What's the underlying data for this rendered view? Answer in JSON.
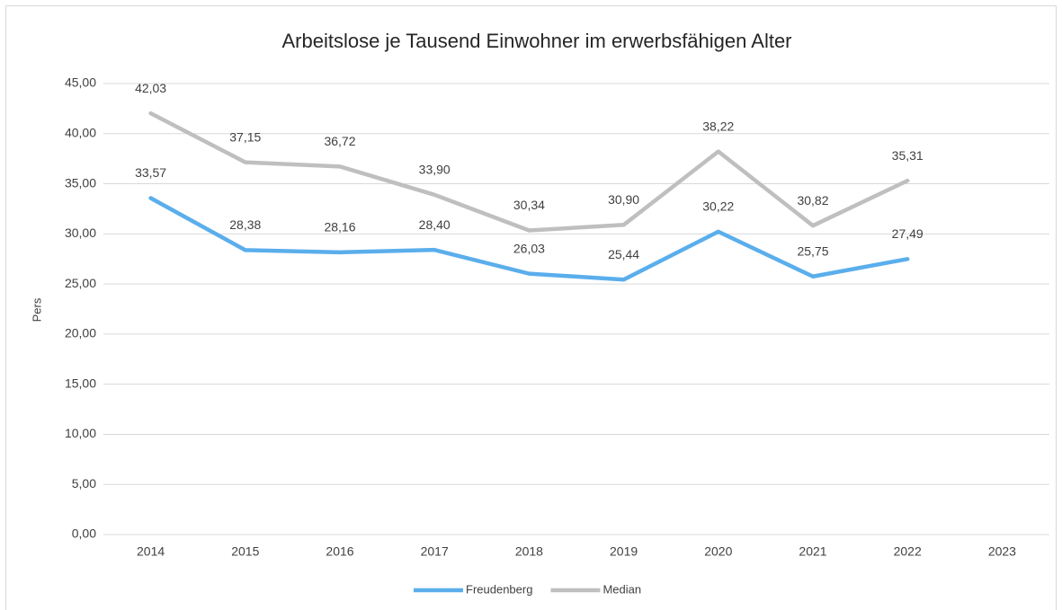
{
  "chart_data": {
    "type": "line",
    "title": "Arbeitslose je Tausend Einwohner im erwerbsfähigen Alter",
    "y_label": "Pers",
    "categories": [
      "2014",
      "2015",
      "2016",
      "2017",
      "2018",
      "2019",
      "2020",
      "2021",
      "2022",
      "2023"
    ],
    "series": [
      {
        "name": "Freudenberg",
        "color": "#5aaeec",
        "values": [
          33.57,
          28.38,
          28.16,
          28.4,
          26.03,
          25.44,
          30.22,
          25.75,
          27.49,
          null
        ],
        "value_labels": [
          "33,57",
          "28,38",
          "28,16",
          "28,40",
          "26,03",
          "25,44",
          "30,22",
          "25,75",
          "27,49",
          null
        ]
      },
      {
        "name": "Median",
        "color": "#bfbfbf",
        "values": [
          42.03,
          37.15,
          36.72,
          33.9,
          30.34,
          30.9,
          38.22,
          30.82,
          35.31,
          null
        ],
        "value_labels": [
          "42,03",
          "37,15",
          "36,72",
          "33,90",
          "30,34",
          "30,90",
          "38,22",
          "30,82",
          "35,31",
          null
        ]
      }
    ],
    "ylim": [
      0,
      45
    ],
    "yticks": [
      {
        "value": 0,
        "label": "0,00"
      },
      {
        "value": 5,
        "label": "5,00"
      },
      {
        "value": 10,
        "label": "10,00"
      },
      {
        "value": 15,
        "label": "15,00"
      },
      {
        "value": 20,
        "label": "20,00"
      },
      {
        "value": 25,
        "label": "25,00"
      },
      {
        "value": 30,
        "label": "30,00"
      },
      {
        "value": 35,
        "label": "35,00"
      },
      {
        "value": 40,
        "label": "40,00"
      },
      {
        "value": 45,
        "label": "45,00"
      }
    ],
    "grid": true,
    "legend": "bottom"
  }
}
